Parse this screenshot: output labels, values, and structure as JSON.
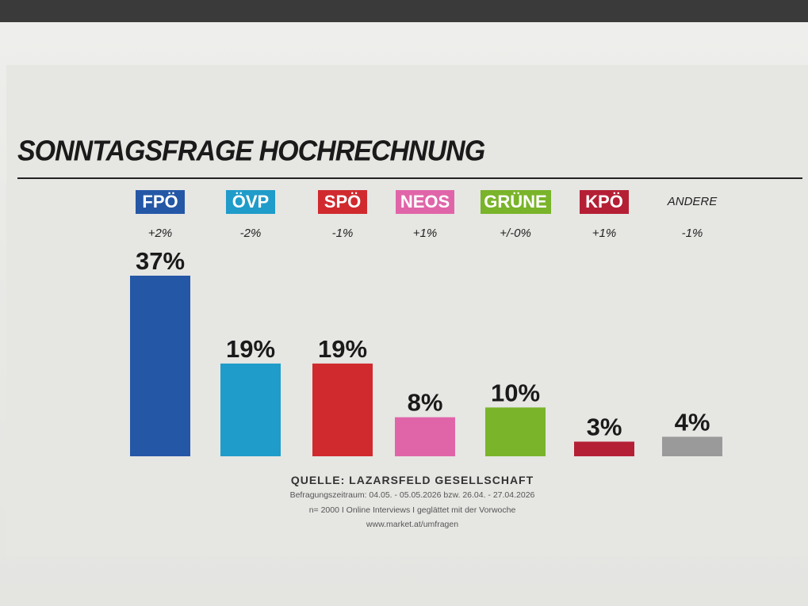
{
  "chart_data": {
    "type": "bar",
    "title": "SONNTAGSFRAGE HOCHRECHNUNG",
    "categories": [
      "FPÖ",
      "ÖVP",
      "SPÖ",
      "NEOS",
      "GRÜNE",
      "KPÖ",
      "ANDERE"
    ],
    "values": [
      37,
      19,
      19,
      8,
      10,
      3,
      4
    ],
    "value_labels": [
      "37%",
      "19%",
      "19%",
      "8%",
      "10%",
      "3%",
      "4%"
    ],
    "changes": [
      "+2%",
      "-2%",
      "-1%",
      "+1%",
      "+/-0%",
      "+1%",
      "-1%"
    ],
    "colors": [
      "#2457a6",
      "#1f9cc9",
      "#d02a2e",
      "#e065a8",
      "#7ab42a",
      "#b51f35",
      "#9a9a9a"
    ],
    "ylim": [
      0,
      40
    ],
    "grid": false,
    "legend": "none"
  },
  "source": {
    "heading": "QUELLE: LAZARSFELD GESELLSCHAFT",
    "line1": "Befragungszeitraum: 04.05. - 05.05.2026 bzw. 26.04. - 27.04.2026",
    "line2": "n= 2000 I Online Interviews I geglättet mit der Vorwoche",
    "line3": "www.market.at/umfragen"
  }
}
